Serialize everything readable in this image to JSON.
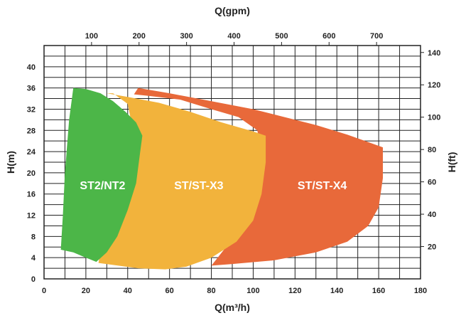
{
  "chart_data": {
    "type": "area",
    "title": "",
    "xlabel": "Q(m³/h)",
    "x2label": "Q(gpm)",
    "ylabel": "H(m)",
    "y2label": "H(ft)",
    "xlim": [
      0,
      180
    ],
    "ylim": [
      0,
      44
    ],
    "x2lim": [
      0,
      792.5
    ],
    "y2lim": [
      0,
      144.3
    ],
    "xticks": [
      0,
      20,
      40,
      60,
      80,
      100,
      120,
      140,
      160,
      180
    ],
    "yticks": [
      0,
      4,
      8,
      12,
      16,
      20,
      24,
      28,
      32,
      36,
      40
    ],
    "x2ticks": [
      100,
      200,
      300,
      400,
      500,
      600,
      700
    ],
    "y2ticks": [
      20,
      40,
      60,
      80,
      100,
      120,
      140
    ],
    "grid": true,
    "series": [
      {
        "name": "ST/ST-X4",
        "color": "#E8693A",
        "points": [
          [
            45,
            36
          ],
          [
            60,
            35
          ],
          [
            80,
            33.5
          ],
          [
            100,
            32
          ],
          [
            115,
            30.5
          ],
          [
            130,
            29
          ],
          [
            145,
            27.2
          ],
          [
            155,
            25.8
          ],
          [
            162,
            24.8
          ],
          [
            162,
            19
          ],
          [
            160,
            13.5
          ],
          [
            155,
            10
          ],
          [
            145,
            7
          ],
          [
            130,
            5
          ],
          [
            110,
            3.5
          ],
          [
            90,
            2.8
          ],
          [
            80,
            2.5
          ],
          [
            85,
            5
          ],
          [
            93,
            9
          ],
          [
            98,
            14
          ],
          [
            102,
            20
          ],
          [
            103,
            25.5
          ],
          [
            102,
            28
          ],
          [
            93,
            30.5
          ],
          [
            80,
            32
          ],
          [
            65,
            33.8
          ],
          [
            50,
            34.5
          ],
          [
            43,
            34.8
          ]
        ]
      },
      {
        "name": "ST/ST-X3",
        "color": "#F2B33C",
        "points": [
          [
            30,
            35
          ],
          [
            40,
            34.3
          ],
          [
            55,
            33.2
          ],
          [
            70,
            31.5
          ],
          [
            85,
            29.5
          ],
          [
            100,
            27.8
          ],
          [
            106,
            27
          ],
          [
            106,
            22
          ],
          [
            104,
            16
          ],
          [
            100,
            11
          ],
          [
            92,
            7
          ],
          [
            80,
            4
          ],
          [
            68,
            2.3
          ],
          [
            58,
            1.8
          ],
          [
            45,
            2
          ],
          [
            26,
            3
          ],
          [
            27,
            5
          ],
          [
            31,
            10
          ],
          [
            35,
            16
          ],
          [
            39,
            24
          ],
          [
            42,
            29
          ],
          [
            40,
            33
          ],
          [
            33,
            35
          ]
        ]
      },
      {
        "name": "ST2/NT2",
        "color": "#4CB648",
        "points": [
          [
            14,
            36
          ],
          [
            20,
            35.8
          ],
          [
            27,
            35
          ],
          [
            33,
            33.5
          ],
          [
            39,
            31.5
          ],
          [
            44,
            29.5
          ],
          [
            47,
            27
          ],
          [
            46,
            24
          ],
          [
            44,
            18
          ],
          [
            40,
            13
          ],
          [
            35,
            8
          ],
          [
            30,
            5
          ],
          [
            25,
            3.2
          ],
          [
            20,
            4
          ],
          [
            14,
            5
          ],
          [
            8,
            5.5
          ],
          [
            9,
            12
          ],
          [
            10,
            20
          ],
          [
            12,
            30
          ]
        ]
      }
    ],
    "labels": [
      {
        "text": "ST2/NT2",
        "x": 28,
        "y": 17.7
      },
      {
        "text": "ST/ST-X3",
        "x": 74,
        "y": 17.7
      },
      {
        "text": "ST/ST-X4",
        "x": 133,
        "y": 17.7
      }
    ]
  }
}
